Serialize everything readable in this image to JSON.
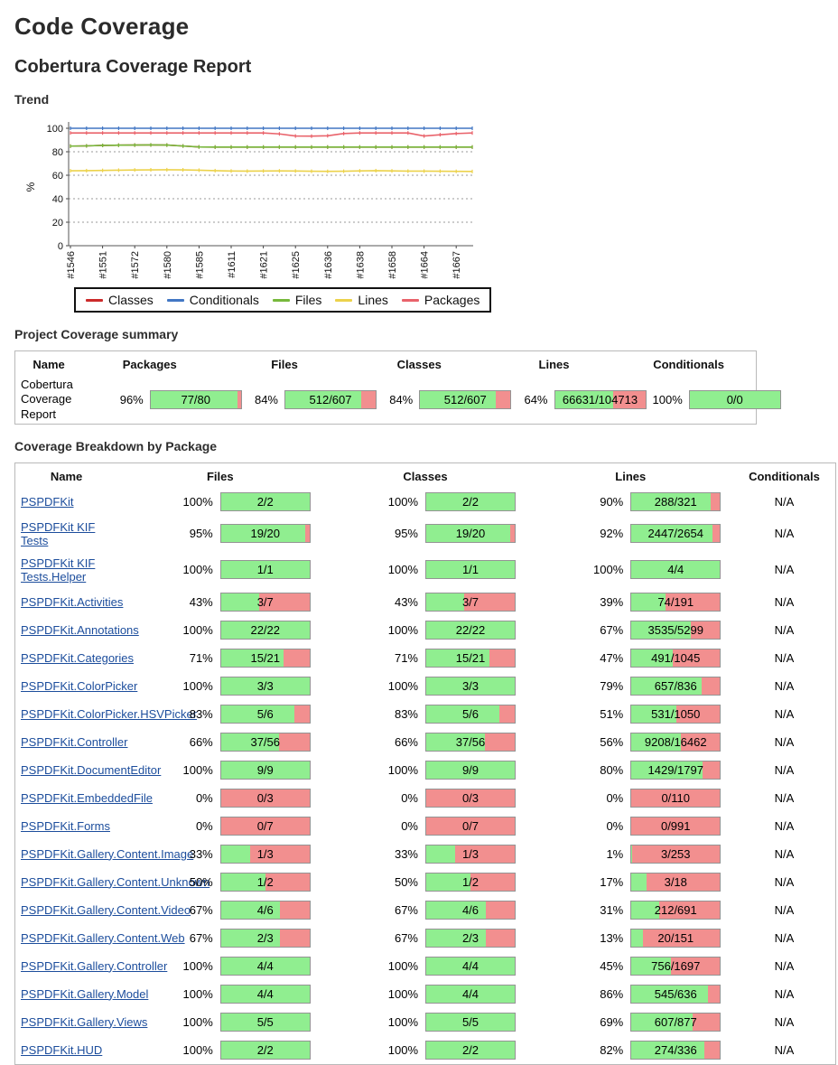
{
  "page": {
    "title": "Code Coverage",
    "subtitle": "Cobertura Coverage Report"
  },
  "sections": {
    "trend": "Trend",
    "summary": "Project Coverage summary",
    "breakdown": "Coverage Breakdown by Package"
  },
  "chart_data": {
    "type": "line",
    "title": "",
    "xlabel": "",
    "ylabel": "%",
    "ylim": [
      0,
      100
    ],
    "y_ticks": [
      0,
      20,
      40,
      60,
      80,
      100
    ],
    "grid": "dashed-horizontal",
    "legend_position": "bottom",
    "x_labels": [
      "#1546",
      "#1551",
      "#1572",
      "#1580",
      "#1585",
      "#1611",
      "#1621",
      "#1625",
      "#1636",
      "#1638",
      "#1658",
      "#1664",
      "#1667"
    ],
    "points_per_label": 2,
    "series": [
      {
        "name": "Classes",
        "color": "#cc2b2b",
        "values": [
          84.8,
          85.0,
          85.4,
          85.6,
          85.7,
          85.8,
          85.7,
          84.9,
          84.1,
          84,
          84,
          84,
          84,
          84,
          84,
          84,
          84,
          84,
          84,
          84,
          84,
          84,
          84,
          84,
          84,
          84
        ]
      },
      {
        "name": "Conditionals",
        "color": "#4277c4",
        "values": [
          100,
          100,
          100,
          100,
          100,
          100,
          100,
          100,
          100,
          100,
          100,
          100,
          100,
          100,
          100,
          100,
          100,
          100,
          100,
          100,
          100,
          100,
          100,
          100,
          100,
          100
        ]
      },
      {
        "name": "Files",
        "color": "#77b93c",
        "values": [
          84.8,
          85.0,
          85.4,
          85.6,
          85.7,
          85.8,
          85.7,
          84.9,
          84.1,
          84,
          84,
          84,
          84,
          84,
          84,
          84,
          84,
          84,
          84,
          84,
          84,
          84,
          84,
          84,
          84,
          84
        ]
      },
      {
        "name": "Lines",
        "color": "#ecd24b",
        "values": [
          63.8,
          63.9,
          64.1,
          64.3,
          64.5,
          64.6,
          64.7,
          64.6,
          64.3,
          63.9,
          63.6,
          63.5,
          63.6,
          63.7,
          63.6,
          63.4,
          63.3,
          63.4,
          63.7,
          63.9,
          63.7,
          63.5,
          63.5,
          63.4,
          63.3,
          63.2
        ]
      },
      {
        "name": "Packages",
        "color": "#e9636b",
        "values": [
          96,
          96,
          96,
          96,
          96,
          96,
          96,
          96,
          96,
          96,
          96,
          96,
          96,
          95.2,
          93.4,
          93.3,
          93.6,
          95.5,
          96,
          96,
          96,
          96,
          93.4,
          94.5,
          95.5,
          96
        ]
      }
    ]
  },
  "summary_table": {
    "headers": [
      "Name",
      "Packages",
      "Files",
      "Classes",
      "Lines",
      "Conditionals"
    ],
    "row": {
      "name": "Cobertura Coverage Report",
      "metrics": [
        {
          "pct": "96%",
          "ratio": "77/80",
          "fill": 96
        },
        {
          "pct": "84%",
          "ratio": "512/607",
          "fill": 84
        },
        {
          "pct": "84%",
          "ratio": "512/607",
          "fill": 84
        },
        {
          "pct": "64%",
          "ratio": "66631/104713",
          "fill": 64
        },
        {
          "pct": "100%",
          "ratio": "0/0",
          "fill": 100
        }
      ]
    }
  },
  "breakdown_table": {
    "headers": [
      "Name",
      "Files",
      "Classes",
      "Lines",
      "Conditionals"
    ],
    "rows": [
      {
        "name": "PSPDFKit",
        "files": {
          "pct": "100%",
          "ratio": "2/2",
          "fill": 100
        },
        "classes": {
          "pct": "100%",
          "ratio": "2/2",
          "fill": 100
        },
        "lines": {
          "pct": "90%",
          "ratio": "288/321",
          "fill": 90
        },
        "conditionals": "N/A"
      },
      {
        "name": "PSPDFKit KIF Tests",
        "files": {
          "pct": "95%",
          "ratio": "19/20",
          "fill": 95
        },
        "classes": {
          "pct": "95%",
          "ratio": "19/20",
          "fill": 95
        },
        "lines": {
          "pct": "92%",
          "ratio": "2447/2654",
          "fill": 92
        },
        "conditionals": "N/A"
      },
      {
        "name": "PSPDFKit KIF Tests.Helper",
        "files": {
          "pct": "100%",
          "ratio": "1/1",
          "fill": 100
        },
        "classes": {
          "pct": "100%",
          "ratio": "1/1",
          "fill": 100
        },
        "lines": {
          "pct": "100%",
          "ratio": "4/4",
          "fill": 100
        },
        "conditionals": "N/A"
      },
      {
        "name": "PSPDFKit.Activities",
        "files": {
          "pct": "43%",
          "ratio": "3/7",
          "fill": 43
        },
        "classes": {
          "pct": "43%",
          "ratio": "3/7",
          "fill": 43
        },
        "lines": {
          "pct": "39%",
          "ratio": "74/191",
          "fill": 39
        },
        "conditionals": "N/A"
      },
      {
        "name": "PSPDFKit.Annotations",
        "files": {
          "pct": "100%",
          "ratio": "22/22",
          "fill": 100
        },
        "classes": {
          "pct": "100%",
          "ratio": "22/22",
          "fill": 100
        },
        "lines": {
          "pct": "67%",
          "ratio": "3535/5299",
          "fill": 67
        },
        "conditionals": "N/A"
      },
      {
        "name": "PSPDFKit.Categories",
        "files": {
          "pct": "71%",
          "ratio": "15/21",
          "fill": 71
        },
        "classes": {
          "pct": "71%",
          "ratio": "15/21",
          "fill": 71
        },
        "lines": {
          "pct": "47%",
          "ratio": "491/1045",
          "fill": 47
        },
        "conditionals": "N/A"
      },
      {
        "name": "PSPDFKit.ColorPicker",
        "files": {
          "pct": "100%",
          "ratio": "3/3",
          "fill": 100
        },
        "classes": {
          "pct": "100%",
          "ratio": "3/3",
          "fill": 100
        },
        "lines": {
          "pct": "79%",
          "ratio": "657/836",
          "fill": 79
        },
        "conditionals": "N/A"
      },
      {
        "name": "PSPDFKit.ColorPicker.HSVPicker",
        "files": {
          "pct": "83%",
          "ratio": "5/6",
          "fill": 83
        },
        "classes": {
          "pct": "83%",
          "ratio": "5/6",
          "fill": 83
        },
        "lines": {
          "pct": "51%",
          "ratio": "531/1050",
          "fill": 51
        },
        "conditionals": "N/A"
      },
      {
        "name": "PSPDFKit.Controller",
        "files": {
          "pct": "66%",
          "ratio": "37/56",
          "fill": 66
        },
        "classes": {
          "pct": "66%",
          "ratio": "37/56",
          "fill": 66
        },
        "lines": {
          "pct": "56%",
          "ratio": "9208/16462",
          "fill": 56
        },
        "conditionals": "N/A"
      },
      {
        "name": "PSPDFKit.DocumentEditor",
        "files": {
          "pct": "100%",
          "ratio": "9/9",
          "fill": 100
        },
        "classes": {
          "pct": "100%",
          "ratio": "9/9",
          "fill": 100
        },
        "lines": {
          "pct": "80%",
          "ratio": "1429/1797",
          "fill": 80
        },
        "conditionals": "N/A"
      },
      {
        "name": "PSPDFKit.EmbeddedFile",
        "files": {
          "pct": "0%",
          "ratio": "0/3",
          "fill": 0
        },
        "classes": {
          "pct": "0%",
          "ratio": "0/3",
          "fill": 0
        },
        "lines": {
          "pct": "0%",
          "ratio": "0/110",
          "fill": 0
        },
        "conditionals": "N/A"
      },
      {
        "name": "PSPDFKit.Forms",
        "files": {
          "pct": "0%",
          "ratio": "0/7",
          "fill": 0
        },
        "classes": {
          "pct": "0%",
          "ratio": "0/7",
          "fill": 0
        },
        "lines": {
          "pct": "0%",
          "ratio": "0/991",
          "fill": 0
        },
        "conditionals": "N/A"
      },
      {
        "name": "PSPDFKit.Gallery.Content.Image",
        "files": {
          "pct": "33%",
          "ratio": "1/3",
          "fill": 33
        },
        "classes": {
          "pct": "33%",
          "ratio": "1/3",
          "fill": 33
        },
        "lines": {
          "pct": "1%",
          "ratio": "3/253",
          "fill": 1
        },
        "conditionals": "N/A"
      },
      {
        "name": "PSPDFKit.Gallery.Content.Unknown",
        "files": {
          "pct": "50%",
          "ratio": "1/2",
          "fill": 50
        },
        "classes": {
          "pct": "50%",
          "ratio": "1/2",
          "fill": 50
        },
        "lines": {
          "pct": "17%",
          "ratio": "3/18",
          "fill": 17
        },
        "conditionals": "N/A"
      },
      {
        "name": "PSPDFKit.Gallery.Content.Video",
        "files": {
          "pct": "67%",
          "ratio": "4/6",
          "fill": 67
        },
        "classes": {
          "pct": "67%",
          "ratio": "4/6",
          "fill": 67
        },
        "lines": {
          "pct": "31%",
          "ratio": "212/691",
          "fill": 31
        },
        "conditionals": "N/A"
      },
      {
        "name": "PSPDFKit.Gallery.Content.Web",
        "files": {
          "pct": "67%",
          "ratio": "2/3",
          "fill": 67
        },
        "classes": {
          "pct": "67%",
          "ratio": "2/3",
          "fill": 67
        },
        "lines": {
          "pct": "13%",
          "ratio": "20/151",
          "fill": 13
        },
        "conditionals": "N/A"
      },
      {
        "name": "PSPDFKit.Gallery.Controller",
        "files": {
          "pct": "100%",
          "ratio": "4/4",
          "fill": 100
        },
        "classes": {
          "pct": "100%",
          "ratio": "4/4",
          "fill": 100
        },
        "lines": {
          "pct": "45%",
          "ratio": "756/1697",
          "fill": 45
        },
        "conditionals": "N/A"
      },
      {
        "name": "PSPDFKit.Gallery.Model",
        "files": {
          "pct": "100%",
          "ratio": "4/4",
          "fill": 100
        },
        "classes": {
          "pct": "100%",
          "ratio": "4/4",
          "fill": 100
        },
        "lines": {
          "pct": "86%",
          "ratio": "545/636",
          "fill": 86
        },
        "conditionals": "N/A"
      },
      {
        "name": "PSPDFKit.Gallery.Views",
        "files": {
          "pct": "100%",
          "ratio": "5/5",
          "fill": 100
        },
        "classes": {
          "pct": "100%",
          "ratio": "5/5",
          "fill": 100
        },
        "lines": {
          "pct": "69%",
          "ratio": "607/877",
          "fill": 69
        },
        "conditionals": "N/A"
      },
      {
        "name": "PSPDFKit.HUD",
        "files": {
          "pct": "100%",
          "ratio": "2/2",
          "fill": 100
        },
        "classes": {
          "pct": "100%",
          "ratio": "2/2",
          "fill": 100
        },
        "lines": {
          "pct": "82%",
          "ratio": "274/336",
          "fill": 82
        },
        "conditionals": "N/A"
      }
    ]
  },
  "colors": {
    "bar_green": "#90ee90",
    "bar_pink": "#f28f8f",
    "link_blue": "#1c4d9c"
  }
}
